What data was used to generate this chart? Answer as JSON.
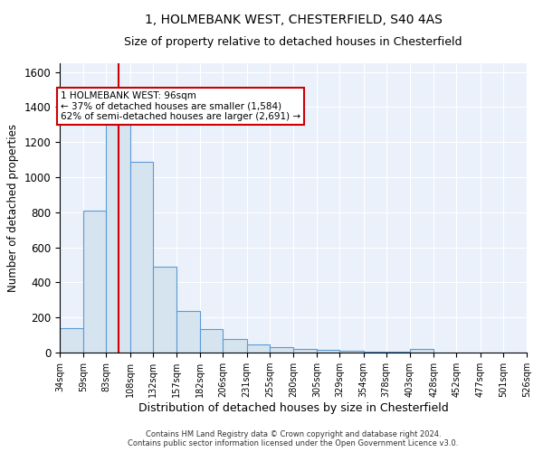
{
  "title": "1, HOLMEBANK WEST, CHESTERFIELD, S40 4AS",
  "subtitle": "Size of property relative to detached houses in Chesterfield",
  "xlabel": "Distribution of detached houses by size in Chesterfield",
  "ylabel": "Number of detached properties",
  "bin_edges": [
    34,
    59,
    83,
    108,
    132,
    157,
    182,
    206,
    231,
    255,
    280,
    305,
    329,
    354,
    378,
    403,
    428,
    452,
    477,
    501,
    526
  ],
  "bar_heights": [
    140,
    810,
    1300,
    1090,
    490,
    235,
    135,
    75,
    45,
    30,
    20,
    15,
    10,
    5,
    5,
    20,
    0,
    0,
    0,
    0
  ],
  "bar_color": "#d6e4f0",
  "bar_edge_color": "#5b9bd5",
  "red_line_x": 96,
  "annotation_text": "1 HOLMEBANK WEST: 96sqm\n← 37% of detached houses are smaller (1,584)\n62% of semi-detached houses are larger (2,691) →",
  "annotation_box_color": "#ffffff",
  "annotation_box_edge_color": "#cc0000",
  "footer_text": "Contains HM Land Registry data © Crown copyright and database right 2024.\nContains public sector information licensed under the Open Government Licence v3.0.",
  "ylim": [
    0,
    1650
  ],
  "background_color": "#eaf1fb",
  "grid_color": "#ffffff",
  "title_fontsize": 10,
  "subtitle_fontsize": 9,
  "tick_label_fontsize": 7,
  "ylabel_fontsize": 8.5,
  "xlabel_fontsize": 9,
  "annotation_fontsize": 7.5,
  "footer_fontsize": 6
}
